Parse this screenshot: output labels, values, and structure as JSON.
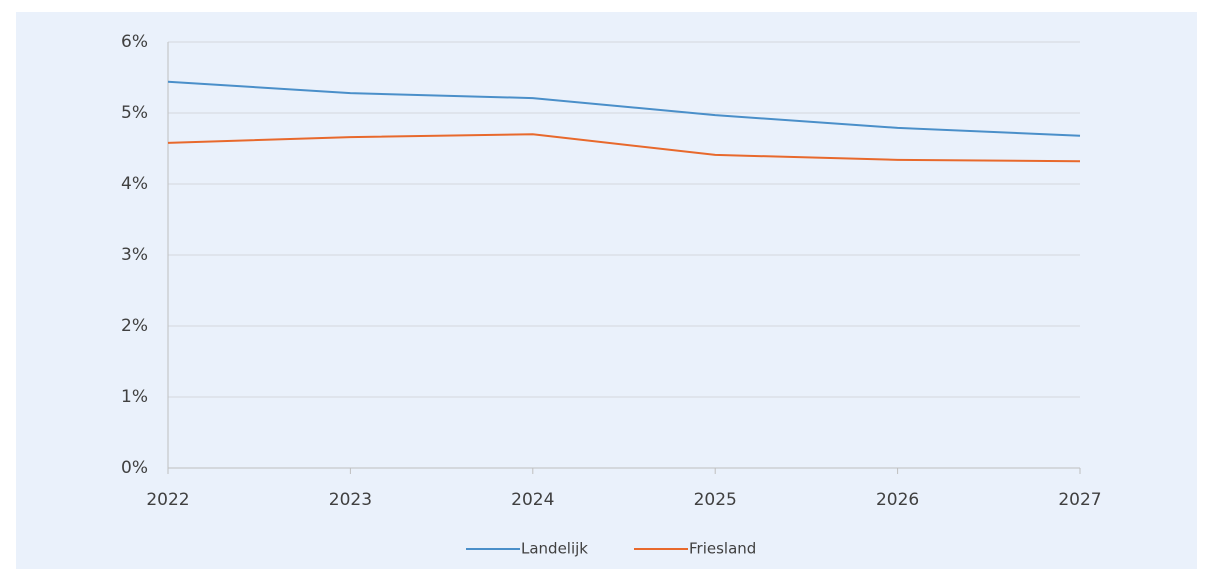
{
  "chart_data": {
    "type": "line",
    "x": [
      2022,
      2023,
      2024,
      2025,
      2026,
      2027
    ],
    "xlim": [
      2022,
      2027
    ],
    "xticks": [
      2022,
      2023,
      2024,
      2025,
      2026,
      2027
    ],
    "ylim": [
      0,
      6
    ],
    "yticks": [
      {
        "value": 0,
        "label": "0%"
      },
      {
        "value": 1,
        "label": "1%"
      },
      {
        "value": 2,
        "label": "2%"
      },
      {
        "value": 3,
        "label": "3%"
      },
      {
        "value": 4,
        "label": "4%"
      },
      {
        "value": 5,
        "label": "5%"
      },
      {
        "value": 6,
        "label": "6%"
      }
    ],
    "grid": true,
    "legend": "bottom",
    "series": [
      {
        "name": "Landelijk",
        "color": "#4a8fc9",
        "values": [
          5.44,
          5.28,
          5.21,
          4.97,
          4.79,
          4.68
        ]
      },
      {
        "name": "Friesland",
        "color": "#e8692c",
        "values": [
          4.58,
          4.66,
          4.7,
          4.41,
          4.34,
          4.32
        ]
      }
    ]
  }
}
